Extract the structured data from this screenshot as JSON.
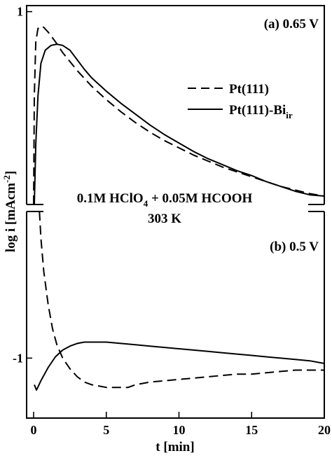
{
  "chart_data": [
    {
      "type": "line",
      "panel_label": "(a) 0.65 V",
      "xlabel": "t [min]",
      "ylabel": "log i [mAcm-2]",
      "ylabel_main": "log i [mAcm",
      "ylabel_sup": "-2",
      "ylabel_close": "]",
      "xlim": [
        0,
        20
      ],
      "ylim": [
        -0.6,
        1.05
      ],
      "yticks": [
        {
          "value": 1,
          "label": "1"
        }
      ],
      "legend_placement": "right",
      "series": [
        {
          "name": "Pt(111)",
          "style": "dashed",
          "x": [
            0.0,
            0.05,
            0.15,
            0.3,
            0.5,
            0.7,
            1.0,
            1.5,
            2.0,
            3.0,
            4.0,
            5.0,
            6.0,
            7.0,
            8.0,
            9.0,
            10.0,
            11.0,
            12.0,
            13.0,
            14.0,
            15.0,
            16.0,
            17.0,
            18.0,
            19.0,
            19.5,
            20.0
          ],
          "y": [
            -0.6,
            0.3,
            0.75,
            0.86,
            0.88,
            0.87,
            0.83,
            0.75,
            0.66,
            0.51,
            0.38,
            0.27,
            0.17,
            0.08,
            0.0,
            -0.07,
            -0.13,
            -0.19,
            -0.24,
            -0.29,
            -0.33,
            -0.37,
            -0.41,
            -0.45,
            -0.48,
            -0.51,
            -0.52,
            -0.53
          ]
        },
        {
          "name": "Pt(111)-Bi",
          "name_sub": "ir",
          "style": "solid",
          "x": [
            0.05,
            0.15,
            0.3,
            0.5,
            0.8,
            1.2,
            1.6,
            2.0,
            2.5,
            3.0,
            3.5,
            4.0,
            5.0,
            6.0,
            7.0,
            8.0,
            9.0,
            10.0,
            11.0,
            12.0,
            13.0,
            14.0,
            15.0,
            16.0,
            17.0,
            18.0,
            19.0,
            20.0
          ],
          "y": [
            -0.6,
            -0.1,
            0.3,
            0.57,
            0.68,
            0.72,
            0.73,
            0.72,
            0.68,
            0.6,
            0.52,
            0.45,
            0.34,
            0.24,
            0.15,
            0.06,
            -0.02,
            -0.09,
            -0.16,
            -0.22,
            -0.27,
            -0.32,
            -0.36,
            -0.41,
            -0.45,
            -0.49,
            -0.52,
            -0.53
          ]
        }
      ]
    },
    {
      "type": "line",
      "panel_label": "(b) 0.5 V",
      "xlim": [
        0,
        20
      ],
      "xticks": [
        0,
        5,
        10,
        15,
        20
      ],
      "xtick_labels": [
        "0",
        "5",
        "10",
        "15",
        "20"
      ],
      "ylim": [
        -1.45,
        0.1
      ],
      "yticks": [
        {
          "value": -1,
          "label": "-1"
        }
      ],
      "series": [
        {
          "name": "Pt(111)",
          "style": "dashed",
          "x": [
            0.4,
            0.5,
            0.7,
            1.0,
            1.3,
            1.6,
            2.0,
            2.5,
            3.0,
            3.5,
            4.0,
            5.0,
            6.0,
            6.5,
            7.0,
            8.0,
            9.0,
            10.0,
            11.0,
            12.0,
            13.0,
            14.0,
            15.0,
            16.0,
            17.0,
            18.0,
            19.0,
            20.0
          ],
          "y": [
            0.1,
            -0.1,
            -0.35,
            -0.6,
            -0.78,
            -0.9,
            -1.0,
            -1.08,
            -1.14,
            -1.18,
            -1.2,
            -1.22,
            -1.22,
            -1.22,
            -1.2,
            -1.18,
            -1.17,
            -1.16,
            -1.15,
            -1.14,
            -1.13,
            -1.12,
            -1.12,
            -1.11,
            -1.1,
            -1.09,
            -1.09,
            -1.09
          ]
        },
        {
          "name": "Pt(111)-Bi",
          "name_sub": "ir",
          "style": "solid",
          "x": [
            0.05,
            0.2,
            0.5,
            1.0,
            1.5,
            2.0,
            2.5,
            3.0,
            3.5,
            4.0,
            5.0,
            6.0,
            7.0,
            8.0,
            9.0,
            10.0,
            11.0,
            12.0,
            13.0,
            14.0,
            15.0,
            16.0,
            17.0,
            18.0,
            19.0,
            20.0
          ],
          "y": [
            -1.2,
            -1.24,
            -1.17,
            -1.07,
            -0.99,
            -0.94,
            -0.91,
            -0.89,
            -0.88,
            -0.88,
            -0.88,
            -0.89,
            -0.9,
            -0.91,
            -0.92,
            -0.93,
            -0.94,
            -0.95,
            -0.96,
            -0.97,
            -0.98,
            -0.99,
            -1.0,
            -1.01,
            -1.02,
            -1.04
          ]
        }
      ]
    }
  ],
  "annotation": {
    "line1_main": "0.1M HClO",
    "line1_sub": "4",
    "line1_rest": " + 0.05M HCOOH",
    "line2": "303 K"
  }
}
